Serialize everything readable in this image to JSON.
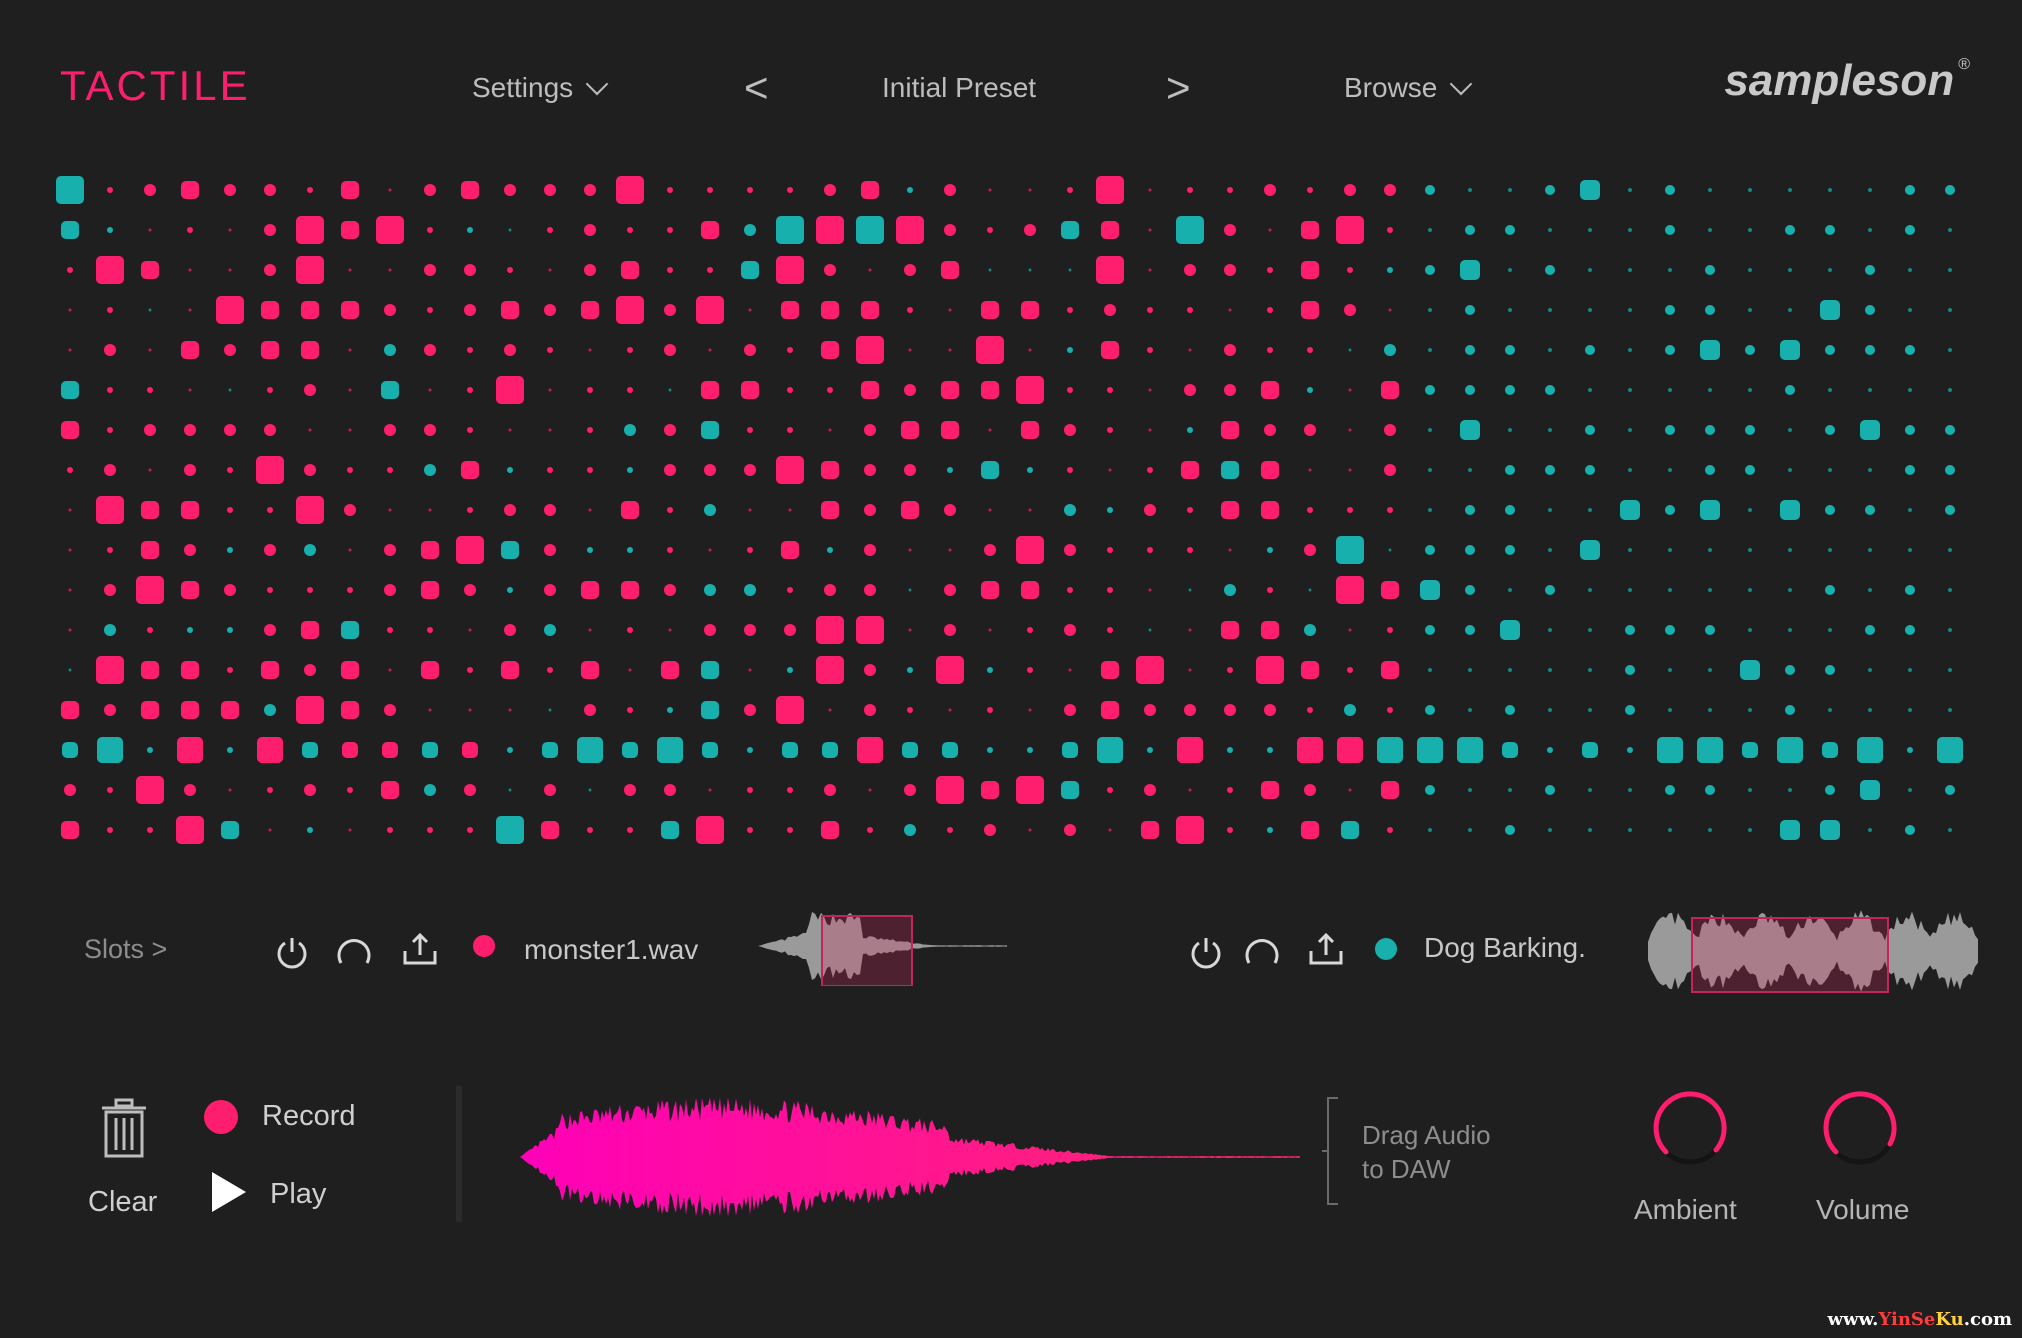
{
  "header": {
    "brand": "TACTILE",
    "settings_label": "Settings",
    "prev_label": "<",
    "preset_name": "Initial Preset",
    "next_label": ">",
    "browse_label": "Browse",
    "logo_text": "sampleson",
    "logo_mark": "®"
  },
  "colors": {
    "pink": "#ff1e6e",
    "teal": "#17b0ad",
    "background": "#1f1f20"
  },
  "slots": {
    "label": "Slots >",
    "slot1": {
      "name": "monster1.wav",
      "color": "#ff1e6e",
      "icons": [
        "power-icon",
        "loop-icon",
        "export-icon"
      ]
    },
    "slot2": {
      "name": "Dog Barking.",
      "color": "#17b0ad",
      "icons": [
        "power-icon",
        "loop-icon",
        "export-icon"
      ]
    }
  },
  "transport": {
    "clear_label": "Clear",
    "record_label": "Record",
    "play_label": "Play",
    "drag_line1": "Drag Audio",
    "drag_line2": "to DAW"
  },
  "knobs": {
    "ambient_label": "Ambient",
    "volume_label": "Volume"
  },
  "watermark": {
    "pre": "www.",
    "y": "YinSe",
    "k": "Ku",
    "post": ".com"
  }
}
